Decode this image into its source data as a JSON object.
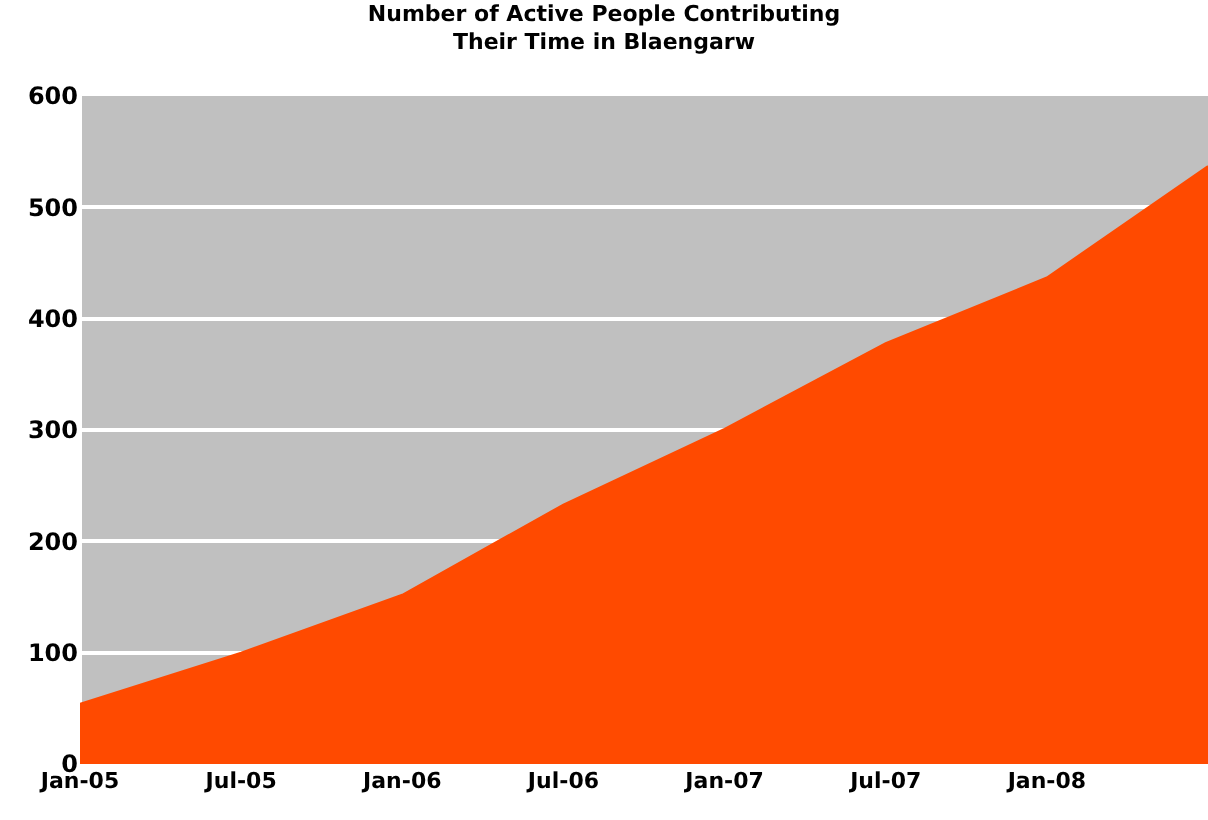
{
  "chart_data": {
    "type": "area",
    "title": "Number of Active People Contributing\nTheir Time in Blaengarw",
    "categories": [
      "Jan-05",
      "Jul-05",
      "Jan-06",
      "Jul-06",
      "Jan-07",
      "Jul-07",
      "Jan-08",
      null
    ],
    "series": [
      {
        "color": "#ff4a00",
        "values": [
          54,
          100,
          152,
          233,
          301,
          378,
          437,
          537
        ]
      }
    ],
    "ylim": [
      0,
      600
    ],
    "yticks": [
      0,
      100,
      200,
      300,
      400,
      500,
      600
    ],
    "grid": "y"
  }
}
